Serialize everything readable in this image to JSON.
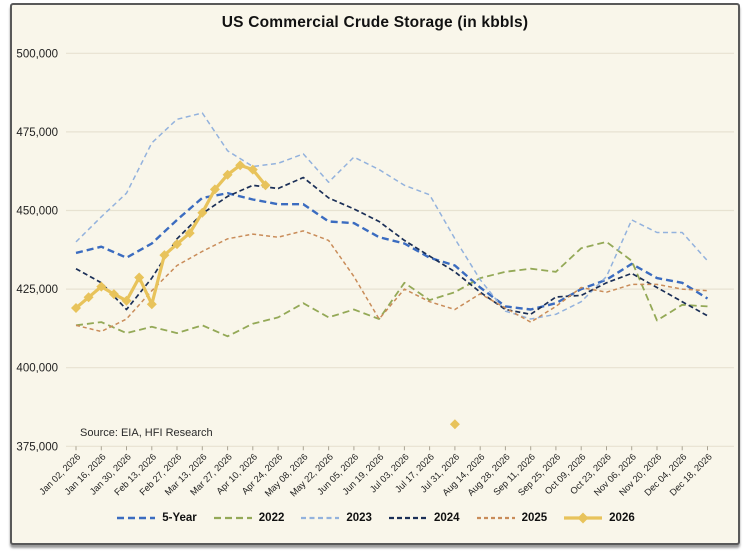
{
  "chart": {
    "title": "US Commercial Crude Storage (in kbbls)",
    "source_note": "Source: EIA, HFI Research"
  },
  "chart_data": {
    "type": "line",
    "title": "US Commercial Crude Storage (in kbbls)",
    "source_note": "Source: EIA, HFI Research",
    "xlabel": "",
    "ylabel": "",
    "ylim": [
      375000,
      500000
    ],
    "ytick_interval": 25000,
    "ytick_labels": [
      "500,000",
      "475,000",
      "450,000",
      "425,000",
      "400,000",
      "375,000"
    ],
    "grid": "horizontal",
    "legend_position": "bottom",
    "background_color": "#f9f6ea",
    "gridline_color": "#e7e2d1",
    "x_unit": "weeks; data plotted weekly, axis labeled every 2 weeks",
    "x_tick_weeks": [
      0,
      2,
      4,
      6,
      8,
      10,
      12,
      14,
      16,
      18,
      20,
      22,
      24,
      26,
      28,
      30,
      32,
      34,
      36,
      38,
      40,
      42,
      44,
      46,
      48,
      50
    ],
    "x_tick_labels": [
      "Jan 02, 2026",
      "Jan 16, 2026",
      "Jan 30, 2026",
      "Feb 13, 2026",
      "Feb 27, 2026",
      "Mar 13, 2026",
      "Mar 27, 2026",
      "Apr 10, 2026",
      "Apr 24, 2026",
      "May 08, 2026",
      "May 22, 2026",
      "Jun 05, 2026",
      "Jun 19, 2026",
      "Jul 03, 2026",
      "Jul 17, 2026",
      "Jul 31, 2026",
      "Aug 14, 2026",
      "Aug 28, 2026",
      "Sep 11, 2026",
      "Sep 25, 2026",
      "Oct 09, 2026",
      "Oct 23, 2026",
      "Nov 06, 2026",
      "Nov 20, 2026",
      "Dec 04, 2026",
      "Dec 18, 2026"
    ],
    "series": [
      {
        "name": "5-Year",
        "color": "#3b6cc0",
        "style": "dashed",
        "dash": "7 4",
        "line_width": 2.4,
        "marker": "none",
        "x_weeks": [
          0,
          2,
          4,
          6,
          8,
          10,
          12,
          14,
          16,
          18,
          20,
          22,
          24,
          26,
          28,
          30,
          32,
          34,
          36,
          38,
          40,
          42,
          44,
          46,
          48,
          50
        ],
        "values": [
          436500,
          438500,
          435000,
          439500,
          447000,
          454000,
          455500,
          453500,
          452000,
          452000,
          446500,
          446000,
          441500,
          439500,
          435000,
          432500,
          425500,
          419500,
          418500,
          420500,
          425000,
          428000,
          433000,
          428500,
          427000,
          422000
        ]
      },
      {
        "name": "2022",
        "color": "#94a957",
        "style": "dashed",
        "dash": "7 4",
        "line_width": 1.8,
        "marker": "none",
        "x_weeks": [
          0,
          2,
          4,
          6,
          8,
          10,
          12,
          14,
          16,
          18,
          20,
          22,
          24,
          26,
          28,
          30,
          32,
          34,
          36,
          38,
          40,
          42,
          44,
          46,
          48,
          50
        ],
        "values": [
          413500,
          414500,
          411000,
          413000,
          411000,
          413500,
          410000,
          414000,
          416000,
          420500,
          416000,
          418500,
          415500,
          427000,
          421500,
          424000,
          428500,
          430500,
          431500,
          430500,
          438000,
          440000,
          434000,
          415000,
          420000,
          419500
        ]
      },
      {
        "name": "2023",
        "color": "#93b2dd",
        "style": "dashed",
        "dash": "5 3.5",
        "line_width": 1.5,
        "marker": "none",
        "x_weeks": [
          0,
          2,
          4,
          6,
          8,
          10,
          12,
          14,
          16,
          18,
          20,
          22,
          24,
          26,
          28,
          30,
          32,
          34,
          36,
          38,
          40,
          42,
          44,
          46,
          48,
          50
        ],
        "values": [
          440000,
          448000,
          455500,
          471500,
          479000,
          481000,
          469000,
          464000,
          465000,
          468000,
          459000,
          467000,
          463000,
          458000,
          455000,
          441000,
          428000,
          418000,
          415500,
          417000,
          421000,
          429000,
          447000,
          443000,
          443000,
          434000
        ]
      },
      {
        "name": "2024",
        "color": "#1b2f57",
        "style": "dashed",
        "dash": "5 3",
        "line_width": 1.7,
        "marker": "none",
        "x_weeks": [
          0,
          2,
          4,
          6,
          8,
          10,
          12,
          14,
          16,
          18,
          20,
          22,
          24,
          26,
          28,
          30,
          32,
          34,
          36,
          38,
          40,
          42,
          44,
          46,
          48,
          50
        ],
        "values": [
          431500,
          427000,
          418500,
          428500,
          441000,
          449000,
          454500,
          458000,
          457000,
          460500,
          454000,
          450500,
          446500,
          440500,
          435500,
          430500,
          424000,
          418500,
          417000,
          422500,
          423000,
          427000,
          430000,
          425500,
          421000,
          416500
        ]
      },
      {
        "name": "2025",
        "color": "#c98c59",
        "style": "dashed",
        "dash": "4 3",
        "line_width": 1.5,
        "marker": "none",
        "x_weeks": [
          0,
          2,
          4,
          6,
          8,
          10,
          12,
          14,
          16,
          18,
          20,
          22,
          24,
          26,
          28,
          30,
          32,
          34,
          36,
          38,
          40,
          42,
          44,
          46,
          48,
          50
        ],
        "values": [
          413500,
          411500,
          415500,
          424500,
          432500,
          437000,
          441000,
          442500,
          441500,
          443500,
          440500,
          429000,
          415500,
          425000,
          421000,
          418500,
          423500,
          419000,
          414500,
          419500,
          425500,
          424000,
          426500,
          426500,
          425000,
          424500
        ]
      },
      {
        "name": "2026",
        "color": "#e8c35b",
        "style": "solid",
        "dash": "",
        "line_width": 3.2,
        "marker": "diamond",
        "x_weeks": [
          0,
          1,
          2,
          3,
          4,
          5,
          6,
          7,
          8,
          9,
          10,
          11,
          12,
          13,
          14,
          15
        ],
        "values": [
          419000,
          422400,
          425800,
          423400,
          421300,
          428700,
          420200,
          435800,
          439300,
          442800,
          449300,
          456700,
          461400,
          464400,
          463000,
          458000
        ],
        "outlier_points": [
          {
            "x_week": 30,
            "value": 382000
          }
        ]
      }
    ]
  }
}
